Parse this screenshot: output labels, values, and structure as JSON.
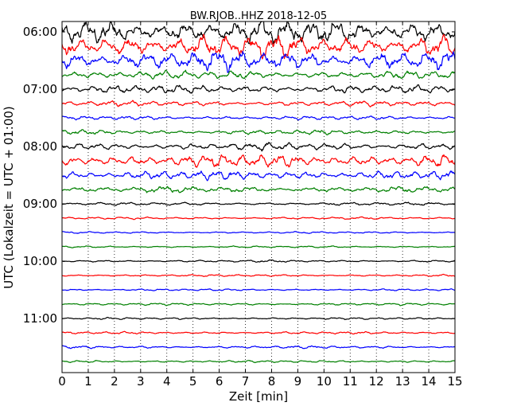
{
  "chart_data": {
    "type": "line",
    "title": "BW.RJOB..HHZ 2018-12-05",
    "xlabel": "Zeit  [min]",
    "ylabel": "UTC (Lokalzeit = UTC + 01:00)",
    "xlim": [
      0,
      15
    ],
    "x_ticks": [
      "0",
      "1",
      "2",
      "3",
      "4",
      "5",
      "6",
      "7",
      "8",
      "9",
      "10",
      "11",
      "12",
      "13",
      "14",
      "15"
    ],
    "y_ticks": [
      "06:00",
      "07:00",
      "08:00",
      "09:00",
      "10:00",
      "11:00"
    ],
    "grid": "vertical dotted lines at each minute",
    "trace_colors": [
      "#000000",
      "#ff0000",
      "#0000ff",
      "#008000"
    ],
    "trace_interval_min": 15,
    "traces": [
      {
        "start": "06:00",
        "color": "#000000",
        "amplitude": 1.6
      },
      {
        "start": "06:15",
        "color": "#ff0000",
        "amplitude": 1.5
      },
      {
        "start": "06:30",
        "color": "#0000ff",
        "amplitude": 1.3
      },
      {
        "start": "06:45",
        "color": "#008000",
        "amplitude": 0.55
      },
      {
        "start": "07:00",
        "color": "#000000",
        "amplitude": 0.55
      },
      {
        "start": "07:15",
        "color": "#ff0000",
        "amplitude": 0.35
      },
      {
        "start": "07:30",
        "color": "#0000ff",
        "amplitude": 0.25
      },
      {
        "start": "07:45",
        "color": "#008000",
        "amplitude": 0.3
      },
      {
        "start": "08:00",
        "color": "#000000",
        "amplitude": 0.5
      },
      {
        "start": "08:15",
        "color": "#ff0000",
        "amplitude": 0.85
      },
      {
        "start": "08:30",
        "color": "#0000ff",
        "amplitude": 0.6
      },
      {
        "start": "08:45",
        "color": "#008000",
        "amplitude": 0.4
      },
      {
        "start": "09:00",
        "color": "#000000",
        "amplitude": 0.2
      },
      {
        "start": "09:15",
        "color": "#ff0000",
        "amplitude": 0.15
      },
      {
        "start": "09:30",
        "color": "#0000ff",
        "amplitude": 0.12
      },
      {
        "start": "09:45",
        "color": "#008000",
        "amplitude": 0.12
      },
      {
        "start": "10:00",
        "color": "#000000",
        "amplitude": 0.15
      },
      {
        "start": "10:15",
        "color": "#ff0000",
        "amplitude": 0.13
      },
      {
        "start": "10:30",
        "color": "#0000ff",
        "amplitude": 0.13
      },
      {
        "start": "10:45",
        "color": "#008000",
        "amplitude": 0.15
      },
      {
        "start": "11:00",
        "color": "#000000",
        "amplitude": 0.13
      },
      {
        "start": "11:15",
        "color": "#ff0000",
        "amplitude": 0.15
      },
      {
        "start": "11:30",
        "color": "#0000ff",
        "amplitude": 0.17
      },
      {
        "start": "11:45",
        "color": "#008000",
        "amplitude": 0.15
      }
    ]
  }
}
